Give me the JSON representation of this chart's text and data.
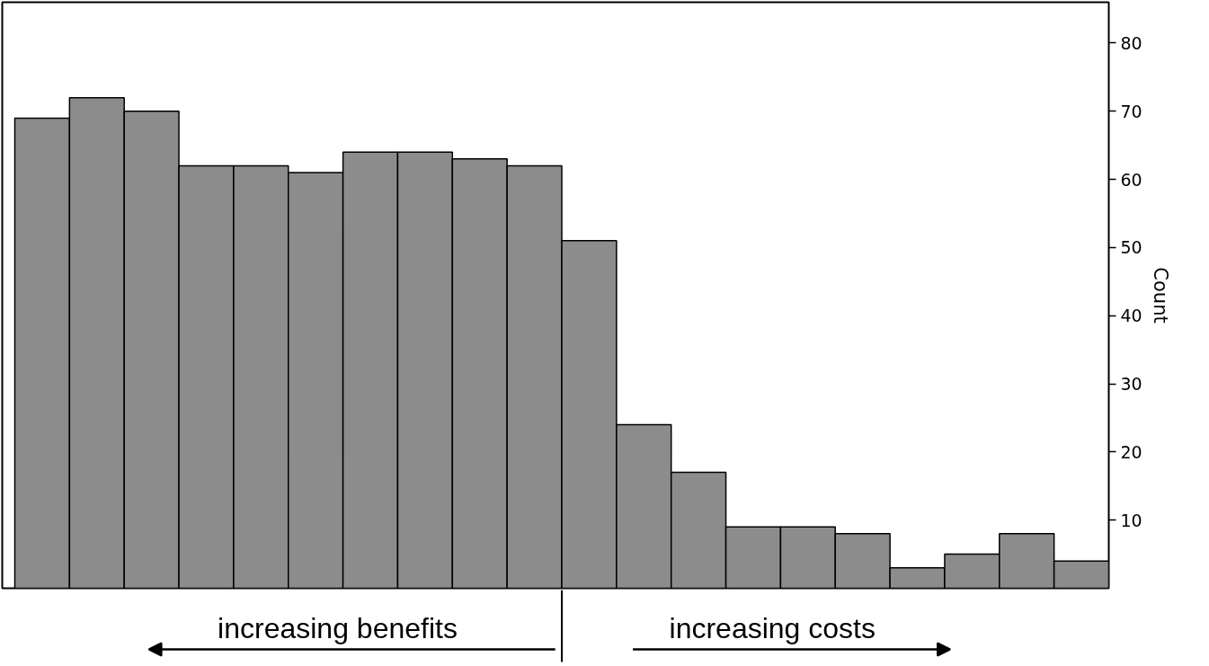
{
  "chart_data": {
    "type": "bar",
    "ylabel": "Count",
    "categories": [
      null,
      null,
      null,
      null,
      null,
      null,
      null,
      null,
      null,
      null,
      null,
      null,
      null,
      null,
      null,
      null,
      null,
      null,
      null,
      null
    ],
    "values": [
      69,
      72,
      70,
      62,
      62,
      61,
      64,
      64,
      63,
      62,
      51,
      24,
      17,
      9,
      9,
      8,
      3,
      5,
      8,
      4
    ],
    "color": "#8c8c8c",
    "ylim": [
      0,
      86
    ],
    "yticks": [
      10,
      20,
      30,
      40,
      50,
      60,
      70,
      80
    ],
    "tick_labels": "y",
    "grid": false,
    "annotations": [
      "increasing benefits",
      "increasing costs"
    ]
  }
}
